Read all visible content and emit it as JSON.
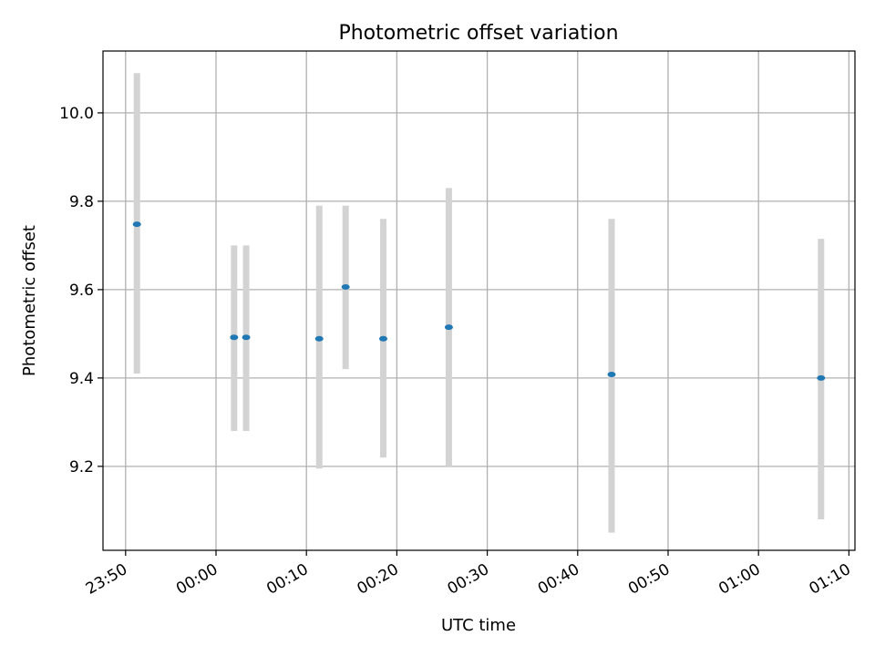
{
  "chart_data": {
    "type": "scatter",
    "title": "Photometric offset variation",
    "xlabel": "UTC time",
    "ylabel": "Photometric offset",
    "grid": true,
    "x_ticks": [
      "23:50",
      "00:00",
      "00:10",
      "00:20",
      "00:30",
      "00:40",
      "00:50",
      "01:00",
      "01:10"
    ],
    "x_tick_times": [
      "23:50",
      "00:00",
      "00:10",
      "00:20",
      "00:30",
      "00:40",
      "00:50",
      "01:00",
      "01:10"
    ],
    "xlim": [
      "23:47:30",
      "01:10:40"
    ],
    "y_ticks": [
      9.2,
      9.4,
      9.6,
      9.8,
      10.0
    ],
    "ylim": [
      9.01,
      10.14
    ],
    "series": [
      {
        "points": [
          {
            "time": "23:51:15",
            "y": 9.748,
            "err_low": 9.41,
            "err_high": 10.09
          },
          {
            "time": "00:02:00",
            "y": 9.492,
            "err_low": 9.28,
            "err_high": 9.7
          },
          {
            "time": "00:03:20",
            "y": 9.492,
            "err_low": 9.28,
            "err_high": 9.7
          },
          {
            "time": "00:11:25",
            "y": 9.489,
            "err_low": 9.195,
            "err_high": 9.79
          },
          {
            "time": "00:14:20",
            "y": 9.606,
            "err_low": 9.42,
            "err_high": 9.79
          },
          {
            "time": "00:18:30",
            "y": 9.489,
            "err_low": 9.22,
            "err_high": 9.76
          },
          {
            "time": "00:25:45",
            "y": 9.515,
            "err_low": 9.2,
            "err_high": 9.83
          },
          {
            "time": "00:43:45",
            "y": 9.408,
            "err_low": 9.05,
            "err_high": 9.76
          },
          {
            "time": "01:06:55",
            "y": 9.4,
            "err_low": 9.08,
            "err_high": 9.715
          }
        ]
      }
    ],
    "colors": {
      "marker": "#1f77b4",
      "errorbar": "#d3d3d3",
      "grid": "#b0b0b0",
      "axis": "#000000"
    }
  }
}
